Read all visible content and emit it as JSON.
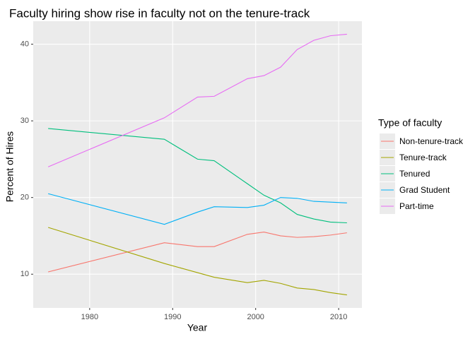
{
  "chart_data": {
    "type": "line",
    "title": "Faculty hiring show rise in faculty not on the tenure-track",
    "x_label": "Year",
    "y_label": "Percent of Hires",
    "legend_title": "Type of faculty",
    "x": [
      1975,
      1989,
      1993,
      1995,
      1999,
      2001,
      2003,
      2005,
      2007,
      2009,
      2011
    ],
    "series": [
      {
        "name": "Non-tenure-track",
        "color": "#F8766D",
        "values": [
          10.3,
          14.1,
          13.6,
          13.6,
          15.2,
          15.5,
          15.0,
          14.8,
          14.9,
          15.1,
          15.4
        ]
      },
      {
        "name": "Tenure-track",
        "color": "#A3A500",
        "values": [
          16.1,
          11.4,
          10.2,
          9.6,
          8.9,
          9.2,
          8.8,
          8.2,
          8.0,
          7.6,
          7.3
        ]
      },
      {
        "name": "Tenured",
        "color": "#00BF7D",
        "values": [
          29.0,
          27.6,
          25.0,
          24.8,
          21.8,
          20.3,
          19.3,
          17.8,
          17.2,
          16.8,
          16.7
        ]
      },
      {
        "name": "Grad Student",
        "color": "#00B0F6",
        "values": [
          20.5,
          16.5,
          18.1,
          18.8,
          18.7,
          19.0,
          20.0,
          19.9,
          19.5,
          19.4,
          19.3
        ]
      },
      {
        "name": "Part-time",
        "color": "#E76BF3",
        "values": [
          24.0,
          30.4,
          33.1,
          33.2,
          35.5,
          35.9,
          37.0,
          39.3,
          40.5,
          41.1,
          41.3
        ]
      }
    ],
    "xlim": [
      1973.2,
      2012.8
    ],
    "xticks": [
      1980,
      1990,
      2000,
      2010
    ],
    "ylim": [
      5.6,
      43.0
    ],
    "yticks": [
      10,
      20,
      30,
      40
    ],
    "grid": true,
    "legend_position": "right"
  }
}
